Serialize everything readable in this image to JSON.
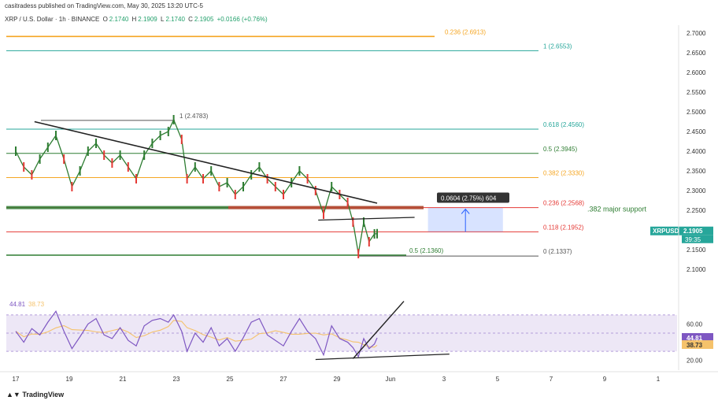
{
  "header": {
    "line1": "casitradess published on TradingView.com, May 30, 2025 13:20 UTC-5",
    "symbol": "XRP / U.S. Dollar · 1h · BINANCE",
    "o_label": "O",
    "o_val": "2.1740",
    "h_label": "H",
    "h_val": "2.1909",
    "l_label": "L",
    "l_val": "2.1740",
    "c_label": "C",
    "c_val": "2.1905",
    "change": "+0.0166 (+0.76%)"
  },
  "footer": {
    "brand": "TradingView"
  },
  "colors": {
    "green": "#2e7d32",
    "teal": "#26a69a",
    "orange": "#f5a623",
    "red": "#e53935",
    "purple": "#7e57c2",
    "rsi_ma": "#f5c26b",
    "blue": "#2962ff",
    "axis_text": "#333333"
  },
  "chart_data": [
    {
      "type": "line",
      "title": "XRP / U.S. Dollar · 1h · BINANCE",
      "x_ticks": [
        "17",
        "19",
        "21",
        "23",
        "25",
        "27",
        "29",
        "Jun",
        "3",
        "5",
        "7",
        "9",
        "1"
      ],
      "y_ticks": [
        "2.1000",
        "2.1500",
        "2.2000",
        "2.2500",
        "2.3000",
        "2.3500",
        "2.4000",
        "2.4500",
        "2.5000",
        "2.5500",
        "2.6000",
        "2.6500",
        "2.7000"
      ],
      "ylim": [
        2.08,
        2.72
      ],
      "price_path": [
        [
          17.0,
          2.4
        ],
        [
          17.3,
          2.36
        ],
        [
          17.6,
          2.34
        ],
        [
          17.9,
          2.38
        ],
        [
          18.2,
          2.41
        ],
        [
          18.5,
          2.44
        ],
        [
          18.8,
          2.38
        ],
        [
          19.1,
          2.31
        ],
        [
          19.4,
          2.35
        ],
        [
          19.7,
          2.4
        ],
        [
          20.0,
          2.42
        ],
        [
          20.3,
          2.39
        ],
        [
          20.6,
          2.37
        ],
        [
          20.9,
          2.39
        ],
        [
          21.2,
          2.36
        ],
        [
          21.5,
          2.33
        ],
        [
          21.8,
          2.39
        ],
        [
          22.1,
          2.42
        ],
        [
          22.4,
          2.44
        ],
        [
          22.7,
          2.45
        ],
        [
          22.9,
          2.48
        ],
        [
          23.2,
          2.43
        ],
        [
          23.4,
          2.33
        ],
        [
          23.7,
          2.36
        ],
        [
          24.0,
          2.33
        ],
        [
          24.3,
          2.35
        ],
        [
          24.6,
          2.31
        ],
        [
          24.9,
          2.32
        ],
        [
          25.2,
          2.29
        ],
        [
          25.5,
          2.31
        ],
        [
          25.8,
          2.34
        ],
        [
          26.1,
          2.36
        ],
        [
          26.4,
          2.33
        ],
        [
          26.7,
          2.31
        ],
        [
          27.0,
          2.29
        ],
        [
          27.3,
          2.32
        ],
        [
          27.6,
          2.35
        ],
        [
          27.9,
          2.33
        ],
        [
          28.2,
          2.3
        ],
        [
          28.5,
          2.24
        ],
        [
          28.8,
          2.31
        ],
        [
          29.1,
          2.29
        ],
        [
          29.4,
          2.27
        ],
        [
          29.6,
          2.22
        ],
        [
          29.8,
          2.14
        ],
        [
          30.0,
          2.22
        ],
        [
          30.2,
          2.17
        ],
        [
          30.4,
          2.19
        ],
        [
          30.5,
          2.1905
        ]
      ],
      "fib_levels": [
        {
          "label": "0.236 (2.6913)",
          "value": 2.6913,
          "color": "#f5a623"
        },
        {
          "label": "1 (2.6553)",
          "value": 2.6553,
          "color": "#26a69a"
        },
        {
          "label": "1 (2.4783)",
          "value": 2.4783,
          "color": "#555555"
        },
        {
          "label": "0.618 (2.4560)",
          "value": 2.456,
          "color": "#26a69a"
        },
        {
          "label": "0.5 (2.3945)",
          "value": 2.3945,
          "color": "#2e7d32"
        },
        {
          "label": "0.382 (2.3330)",
          "value": 2.333,
          "color": "#f5a623"
        },
        {
          "label": "0.236 (2.2568)",
          "value": 2.2568,
          "color": "#e53935"
        },
        {
          "label": "0.118 (2.1952)",
          "value": 2.1952,
          "color": "#e53935"
        },
        {
          "label": "0 (2.1337)",
          "value": 2.1337,
          "color": "#555555"
        },
        {
          "label": "0.5 (2.1360)",
          "value": 2.136,
          "color": "#2e7d32"
        }
      ],
      "annotations": {
        "measure": "0.0604 (2.75%) 604",
        "support": ".382 major support",
        "symbol_tag": "XRPUSD",
        "last_price": "2.1905",
        "countdown": "39:35"
      }
    },
    {
      "type": "line",
      "title": "",
      "series": [
        {
          "name": "44.81",
          "color": "#7e57c2"
        },
        {
          "name": "38.73",
          "color": "#f5c26b"
        }
      ],
      "y_ticks": [
        "20.00",
        "60.00"
      ],
      "ylim": [
        18,
        82
      ],
      "rsi": [
        [
          17.0,
          52
        ],
        [
          17.3,
          40
        ],
        [
          17.6,
          55
        ],
        [
          17.9,
          48
        ],
        [
          18.2,
          62
        ],
        [
          18.5,
          74
        ],
        [
          18.8,
          52
        ],
        [
          19.1,
          33
        ],
        [
          19.4,
          46
        ],
        [
          19.7,
          60
        ],
        [
          20.0,
          66
        ],
        [
          20.3,
          48
        ],
        [
          20.6,
          44
        ],
        [
          20.9,
          56
        ],
        [
          21.2,
          42
        ],
        [
          21.5,
          36
        ],
        [
          21.8,
          58
        ],
        [
          22.1,
          64
        ],
        [
          22.4,
          66
        ],
        [
          22.7,
          62
        ],
        [
          22.9,
          70
        ],
        [
          23.2,
          52
        ],
        [
          23.4,
          30
        ],
        [
          23.7,
          50
        ],
        [
          24.0,
          40
        ],
        [
          24.3,
          56
        ],
        [
          24.6,
          36
        ],
        [
          24.9,
          44
        ],
        [
          25.2,
          30
        ],
        [
          25.5,
          45
        ],
        [
          25.8,
          62
        ],
        [
          26.1,
          66
        ],
        [
          26.4,
          48
        ],
        [
          26.7,
          42
        ],
        [
          27.0,
          36
        ],
        [
          27.3,
          52
        ],
        [
          27.6,
          66
        ],
        [
          27.9,
          52
        ],
        [
          28.2,
          44
        ],
        [
          28.5,
          26
        ],
        [
          28.8,
          58
        ],
        [
          29.1,
          44
        ],
        [
          29.4,
          40
        ],
        [
          29.6,
          34
        ],
        [
          29.8,
          24
        ],
        [
          30.0,
          44
        ],
        [
          30.2,
          33
        ],
        [
          30.4,
          38
        ],
        [
          30.5,
          44.81
        ]
      ],
      "rsi_values": {
        "rsi": "44.81",
        "ma": "38.73"
      }
    }
  ]
}
